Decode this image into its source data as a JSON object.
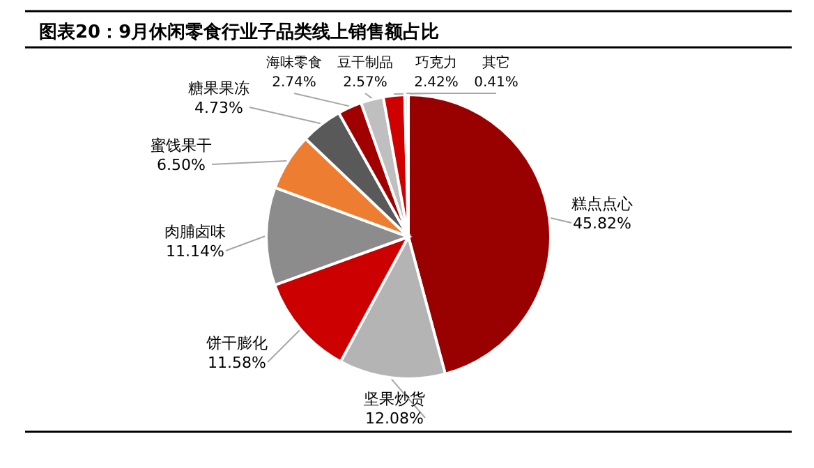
{
  "chart_data": {
    "type": "pie",
    "title": "图表20：9月休闲零食行业子品类线上销售额占比",
    "categories": [
      "糕点点心",
      "坚果炒货",
      "饼干膨化",
      "肉脯卤味",
      "蜜饯果干",
      "糖果果冻",
      "海味零食",
      "豆干制品",
      "巧克力",
      "其它"
    ],
    "values": [
      45.82,
      12.08,
      11.58,
      11.14,
      6.5,
      4.73,
      2.74,
      2.57,
      2.42,
      0.41
    ],
    "value_labels": [
      "45.82%",
      "12.08%",
      "11.58%",
      "11.14%",
      "6.50%",
      "4.73%",
      "2.74%",
      "2.57%",
      "2.42%",
      "0.41%"
    ],
    "colors": [
      "#990000",
      "#b4b4b4",
      "#cc0000",
      "#8c8c8c",
      "#ed7d31",
      "#595959",
      "#a00000",
      "#bfbfbf",
      "#d00000",
      "#e6e6e6"
    ]
  }
}
